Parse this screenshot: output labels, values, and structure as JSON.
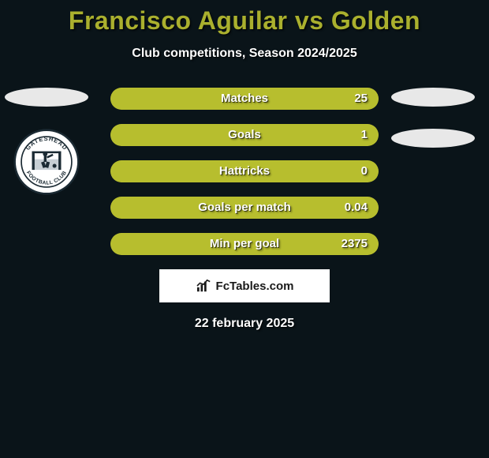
{
  "title_color": "#aab02e",
  "subtitle_color": "#ffffff",
  "title": "Francisco Aguilar vs Golden",
  "subtitle": "Club competitions, Season 2024/2025",
  "bar_bg": "#7d8021",
  "bar_fill": "#b7be2e",
  "ellipse_color": "#e8e8e8",
  "stats": [
    {
      "label": "Matches",
      "value": "25",
      "fill_pct": 100
    },
    {
      "label": "Goals",
      "value": "1",
      "fill_pct": 100
    },
    {
      "label": "Hattricks",
      "value": "0",
      "fill_pct": 100
    },
    {
      "label": "Goals per match",
      "value": "0.04",
      "fill_pct": 100
    },
    {
      "label": "Min per goal",
      "value": "2375",
      "fill_pct": 100
    }
  ],
  "club_name": "Gateshead Football Club",
  "footer_brand": "FcTables.com",
  "date": "22 february 2025"
}
